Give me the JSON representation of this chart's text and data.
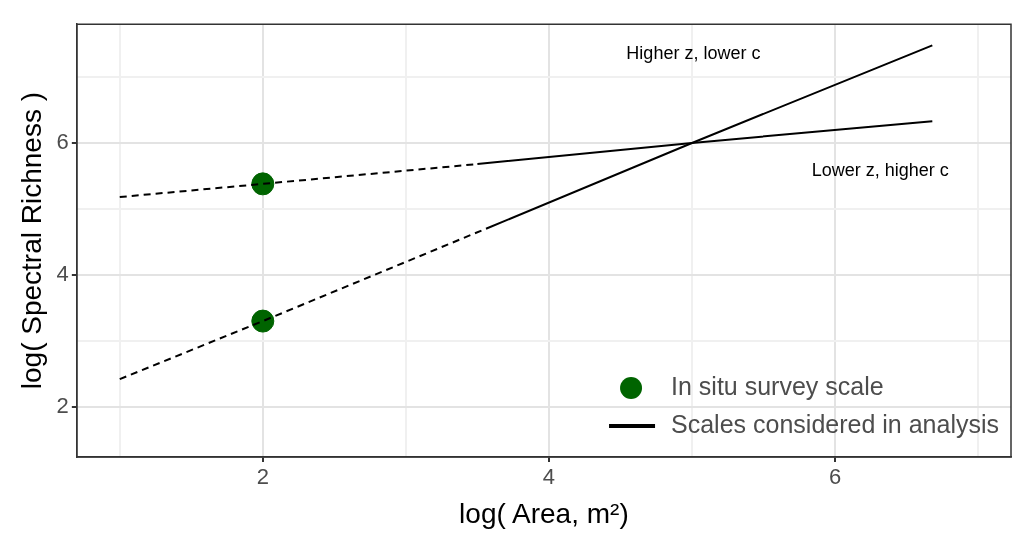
{
  "chart_data": {
    "type": "line",
    "xlabel": "log( Area, m²)",
    "ylabel": "log( Spectral Richness )",
    "xlim": [
      0.7,
      7.23
    ],
    "ylim": [
      1.24,
      7.8
    ],
    "xticks": [
      {
        "value": 1,
        "label": null
      },
      2,
      {
        "value": 3,
        "label": null
      },
      4,
      {
        "value": 5,
        "label": null
      },
      6,
      {
        "value": 7,
        "label": null
      }
    ],
    "yticks": [
      2,
      {
        "value": 3,
        "label": null
      },
      4,
      {
        "value": 5,
        "label": null
      },
      6,
      {
        "value": 7,
        "label": null
      }
    ],
    "grid": true,
    "legend": "bottom right",
    "series": [
      {
        "color": "#000000",
        "line_style": "dashed",
        "marker": "none",
        "x": [
          1,
          2,
          3.56
        ],
        "values": [
          2.42,
          3.3,
          4.7
        ]
      },
      {
        "color": "#000000",
        "line_style": "dashed",
        "marker": "none",
        "x": [
          1,
          2,
          3.5
        ],
        "values": [
          5.18,
          5.38,
          5.68
        ]
      },
      {
        "color": "#000000",
        "line_style": "solid",
        "marker": "none",
        "x": [
          3.56,
          5,
          6.68
        ],
        "values": [
          4.7,
          6.0,
          7.48
        ]
      },
      {
        "name": "Scales considered in analysis",
        "color": "#000000",
        "line_style": "solid",
        "marker": "none",
        "x": [
          3.5,
          5,
          6.68
        ],
        "values": [
          5.68,
          6.0,
          6.33
        ]
      },
      {
        "type": "scatter",
        "name": "In situ survey scale",
        "color": "#006400",
        "marker": "circle",
        "x": [
          2,
          2
        ],
        "values": [
          5.38,
          3.3
        ]
      }
    ],
    "annotations": [
      "Higher z, lower c",
      "Lower z, higher c"
    ]
  }
}
